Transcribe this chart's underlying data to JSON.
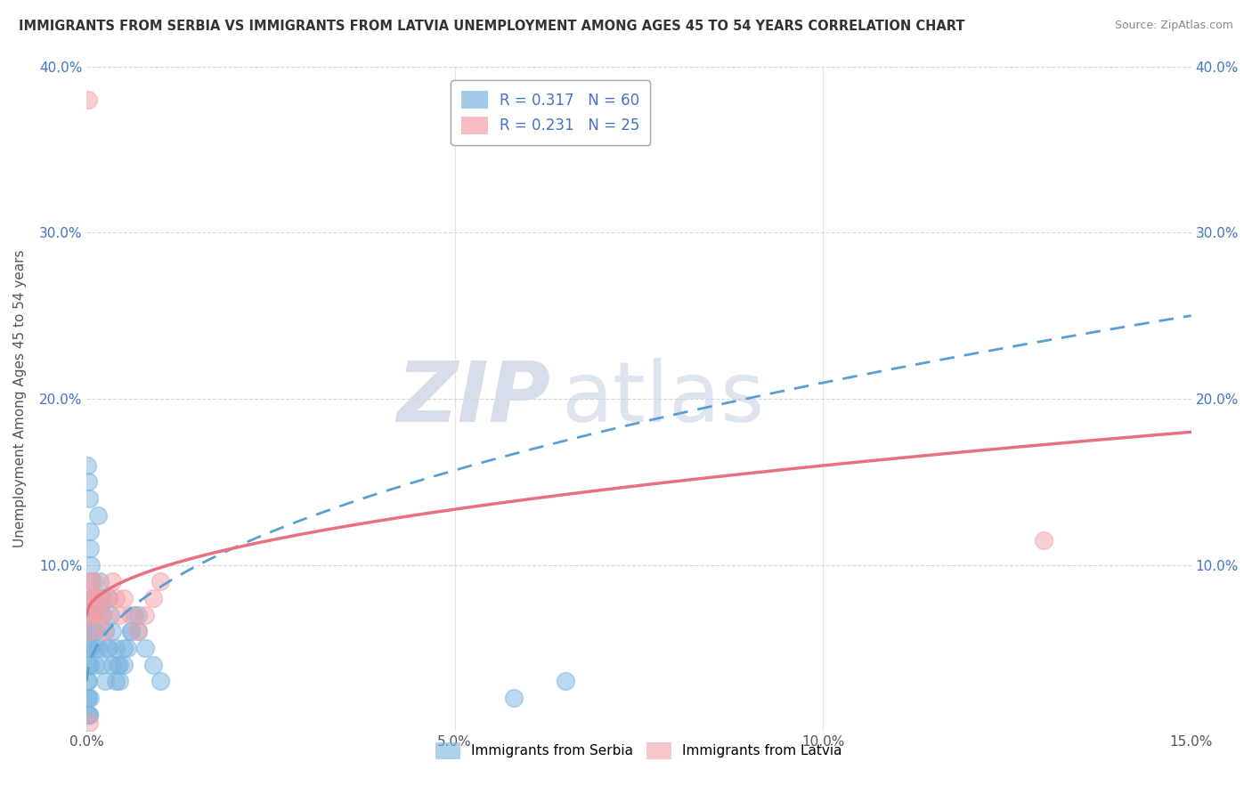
{
  "title": "IMMIGRANTS FROM SERBIA VS IMMIGRANTS FROM LATVIA UNEMPLOYMENT AMONG AGES 45 TO 54 YEARS CORRELATION CHART",
  "source": "Source: ZipAtlas.com",
  "xlabel_bottom": "Immigrants from Serbia",
  "xlabel_bottom2": "Immigrants from Latvia",
  "ylabel": "Unemployment Among Ages 45 to 54 years",
  "xlim": [
    0,
    0.15
  ],
  "ylim": [
    0,
    0.4
  ],
  "xticks": [
    0.0,
    0.05,
    0.1,
    0.15
  ],
  "xticklabels": [
    "0.0%",
    "5.0%",
    "10.0%",
    "15.0%"
  ],
  "yticks": [
    0.0,
    0.1,
    0.2,
    0.3,
    0.4
  ],
  "yticklabels_left": [
    "",
    "10.0%",
    "20.0%",
    "30.0%",
    "40.0%"
  ],
  "yticklabels_right": [
    "",
    "10.0%",
    "20.0%",
    "30.0%",
    "40.0%"
  ],
  "serbia_color": "#7ab5e0",
  "latvia_color": "#f4a0a8",
  "serbia_line_color": "#5a9fd4",
  "latvia_line_color": "#e87082",
  "serbia_R": 0.317,
  "serbia_N": 60,
  "latvia_R": 0.231,
  "latvia_N": 25,
  "serbia_scatter_x": [
    0.0002,
    0.0003,
    0.0004,
    0.0005,
    0.0006,
    0.0007,
    0.0008,
    0.0009,
    0.001,
    0.0012,
    0.0015,
    0.0018,
    0.002,
    0.0022,
    0.0025,
    0.0028,
    0.003,
    0.0032,
    0.0035,
    0.004,
    0.0042,
    0.0045,
    0.005,
    0.0055,
    0.006,
    0.0065,
    0.007,
    0.008,
    0.009,
    0.01,
    0.0001,
    0.0002,
    0.0003,
    0.0004,
    0.0005,
    0.0006,
    0.0007,
    0.0008,
    0.001,
    0.0012,
    0.0015,
    0.002,
    0.0025,
    0.003,
    0.0035,
    0.004,
    0.0045,
    0.005,
    0.006,
    0.007,
    0.0001,
    0.0002,
    0.0003,
    0.0002,
    0.0003,
    0.0004,
    0.0001,
    0.0002,
    0.058,
    0.065
  ],
  "serbia_scatter_y": [
    0.04,
    0.05,
    0.04,
    0.06,
    0.05,
    0.07,
    0.06,
    0.08,
    0.05,
    0.04,
    0.13,
    0.09,
    0.08,
    0.07,
    0.06,
    0.05,
    0.08,
    0.07,
    0.06,
    0.05,
    0.04,
    0.03,
    0.04,
    0.05,
    0.06,
    0.07,
    0.06,
    0.05,
    0.04,
    0.03,
    0.16,
    0.15,
    0.14,
    0.12,
    0.11,
    0.1,
    0.09,
    0.08,
    0.07,
    0.06,
    0.05,
    0.04,
    0.03,
    0.05,
    0.04,
    0.03,
    0.04,
    0.05,
    0.06,
    0.07,
    0.02,
    0.01,
    0.01,
    0.02,
    0.01,
    0.02,
    0.03,
    0.03,
    0.02,
    0.03
  ],
  "latvia_scatter_x": [
    0.0002,
    0.0004,
    0.0006,
    0.0008,
    0.001,
    0.0012,
    0.0015,
    0.002,
    0.0022,
    0.0025,
    0.003,
    0.0035,
    0.004,
    0.0045,
    0.005,
    0.006,
    0.007,
    0.008,
    0.009,
    0.01,
    0.0002,
    0.0004,
    0.0006,
    0.13,
    0.0003
  ],
  "latvia_scatter_y": [
    0.08,
    0.09,
    0.07,
    0.08,
    0.09,
    0.08,
    0.07,
    0.08,
    0.07,
    0.06,
    0.08,
    0.09,
    0.08,
    0.07,
    0.08,
    0.07,
    0.06,
    0.07,
    0.08,
    0.09,
    0.38,
    0.07,
    0.06,
    0.115,
    0.005
  ],
  "watermark_zip": "ZIP",
  "watermark_atlas": "atlas",
  "background_color": "#ffffff",
  "grid_color": "#cccccc",
  "title_color": "#333333",
  "tick_color": "#4472c4",
  "ylabel_color": "#555555"
}
